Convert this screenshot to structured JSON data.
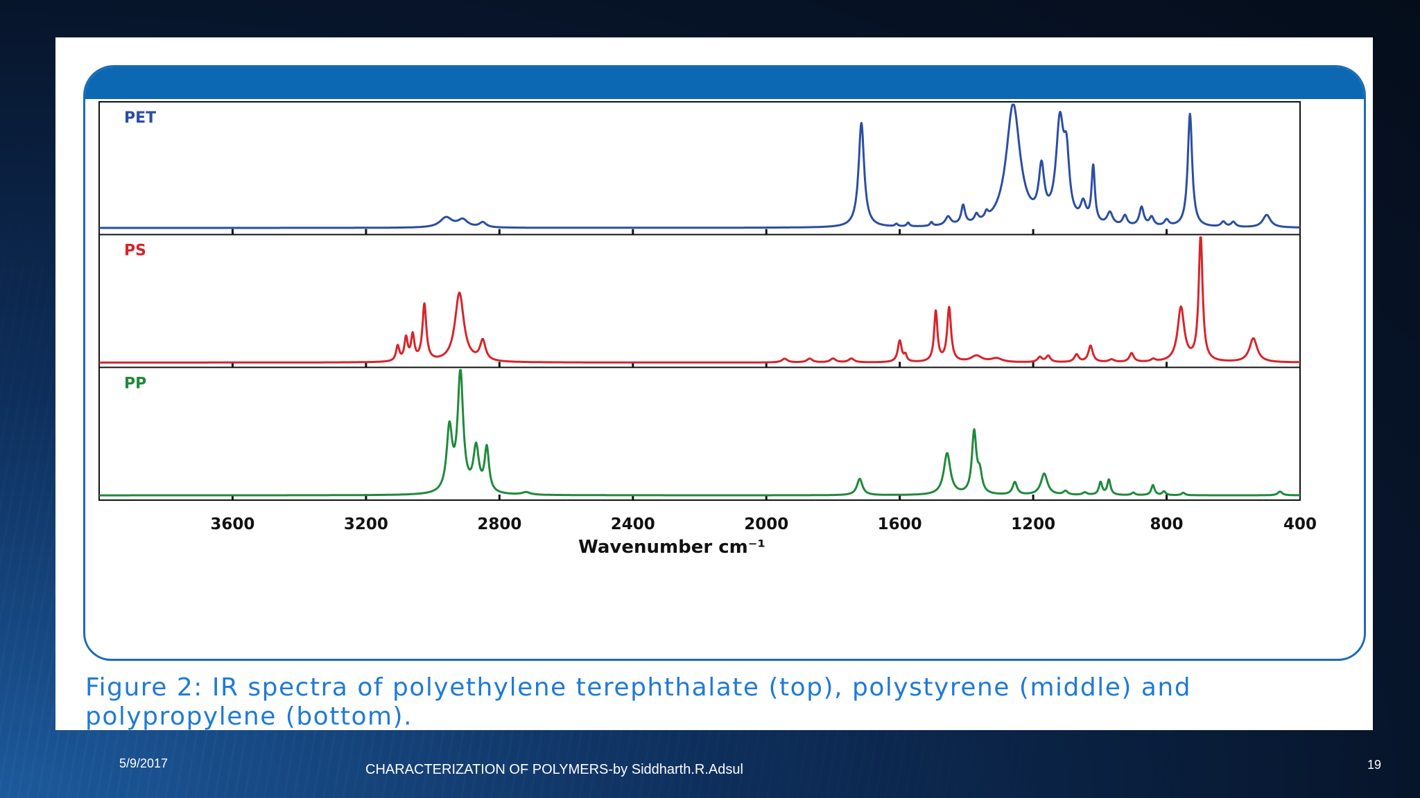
{
  "footer": {
    "date": "5/9/2017",
    "title": "CHARACTERIZATION OF POLYMERS-by Siddharth.R.Adsul",
    "page_number": "19"
  },
  "caption": "Figure 2: IR spectra of polyethylene terephthalate (top), polystyrene (middle) and polypropylene (bottom).",
  "colors": {
    "frame_blue": "#0d68b4",
    "pet": "#2a4ea3",
    "ps": "#d8232a",
    "pp": "#1f8a3a"
  },
  "chart_data": {
    "type": "line",
    "xlabel": "Wavenumber cm⁻¹",
    "xlim": [
      4000,
      400
    ],
    "x_reversed": true,
    "x_ticks": [
      3600,
      3200,
      2800,
      2400,
      2000,
      1600,
      1200,
      800,
      400
    ],
    "x_tick_labels": [
      "3600",
      "3200",
      "2800",
      "2400",
      "2000",
      "1600",
      "1200",
      "800",
      "400"
    ],
    "grid": false,
    "ylim": [
      0,
      1
    ],
    "series": [
      {
        "name": "PET",
        "color": "#2a4ea3",
        "baseline": 0.02,
        "peaks": [
          [
            2960,
            0.08,
            22
          ],
          [
            2910,
            0.06,
            18
          ],
          [
            2850,
            0.04,
            12
          ],
          [
            1715,
            0.83,
            10
          ],
          [
            1610,
            0.02,
            5
          ],
          [
            1575,
            0.03,
            5
          ],
          [
            1505,
            0.03,
            5
          ],
          [
            1455,
            0.07,
            10
          ],
          [
            1410,
            0.15,
            7
          ],
          [
            1370,
            0.06,
            7
          ],
          [
            1340,
            0.05,
            6
          ],
          [
            1260,
            0.97,
            25
          ],
          [
            1175,
            0.4,
            10
          ],
          [
            1120,
            0.78,
            14
          ],
          [
            1100,
            0.45,
            10
          ],
          [
            1050,
            0.15,
            10
          ],
          [
            1020,
            0.45,
            6
          ],
          [
            970,
            0.1,
            10
          ],
          [
            925,
            0.08,
            8
          ],
          [
            875,
            0.15,
            8
          ],
          [
            845,
            0.07,
            8
          ],
          [
            800,
            0.05,
            8
          ],
          [
            730,
            0.9,
            8
          ],
          [
            630,
            0.04,
            8
          ],
          [
            600,
            0.04,
            8
          ],
          [
            500,
            0.1,
            14
          ]
        ]
      },
      {
        "name": "PS",
        "color": "#d8232a",
        "baseline": 0.005,
        "peaks": [
          [
            3105,
            0.12,
            6
          ],
          [
            3080,
            0.18,
            6
          ],
          [
            3060,
            0.2,
            6
          ],
          [
            3025,
            0.45,
            7
          ],
          [
            2920,
            0.55,
            16
          ],
          [
            2850,
            0.16,
            10
          ],
          [
            1945,
            0.03,
            10
          ],
          [
            1870,
            0.03,
            10
          ],
          [
            1800,
            0.03,
            10
          ],
          [
            1745,
            0.03,
            10
          ],
          [
            1600,
            0.17,
            7
          ],
          [
            1583,
            0.05,
            5
          ],
          [
            1492,
            0.4,
            6
          ],
          [
            1452,
            0.43,
            7
          ],
          [
            1370,
            0.05,
            20
          ],
          [
            1310,
            0.03,
            20
          ],
          [
            1180,
            0.04,
            8
          ],
          [
            1155,
            0.05,
            8
          ],
          [
            1070,
            0.06,
            8
          ],
          [
            1028,
            0.13,
            8
          ],
          [
            965,
            0.02,
            10
          ],
          [
            905,
            0.07,
            8
          ],
          [
            840,
            0.02,
            8
          ],
          [
            757,
            0.43,
            12
          ],
          [
            698,
            1.0,
            7
          ],
          [
            540,
            0.19,
            14
          ]
        ]
      },
      {
        "name": "PP",
        "color": "#1f8a3a",
        "baseline": 0.005,
        "peaks": [
          [
            2950,
            0.5,
            10
          ],
          [
            2917,
            0.95,
            10
          ],
          [
            2870,
            0.35,
            10
          ],
          [
            2838,
            0.35,
            8
          ],
          [
            2720,
            0.02,
            15
          ],
          [
            1720,
            0.13,
            10
          ],
          [
            1458,
            0.33,
            12
          ],
          [
            1377,
            0.49,
            8
          ],
          [
            1360,
            0.15,
            8
          ],
          [
            1255,
            0.1,
            8
          ],
          [
            1167,
            0.17,
            12
          ],
          [
            1103,
            0.03,
            8
          ],
          [
            1045,
            0.02,
            8
          ],
          [
            998,
            0.1,
            6
          ],
          [
            973,
            0.12,
            6
          ],
          [
            900,
            0.02,
            6
          ],
          [
            841,
            0.08,
            6
          ],
          [
            808,
            0.03,
            6
          ],
          [
            750,
            0.02,
            6
          ],
          [
            460,
            0.03,
            8
          ]
        ]
      }
    ]
  }
}
